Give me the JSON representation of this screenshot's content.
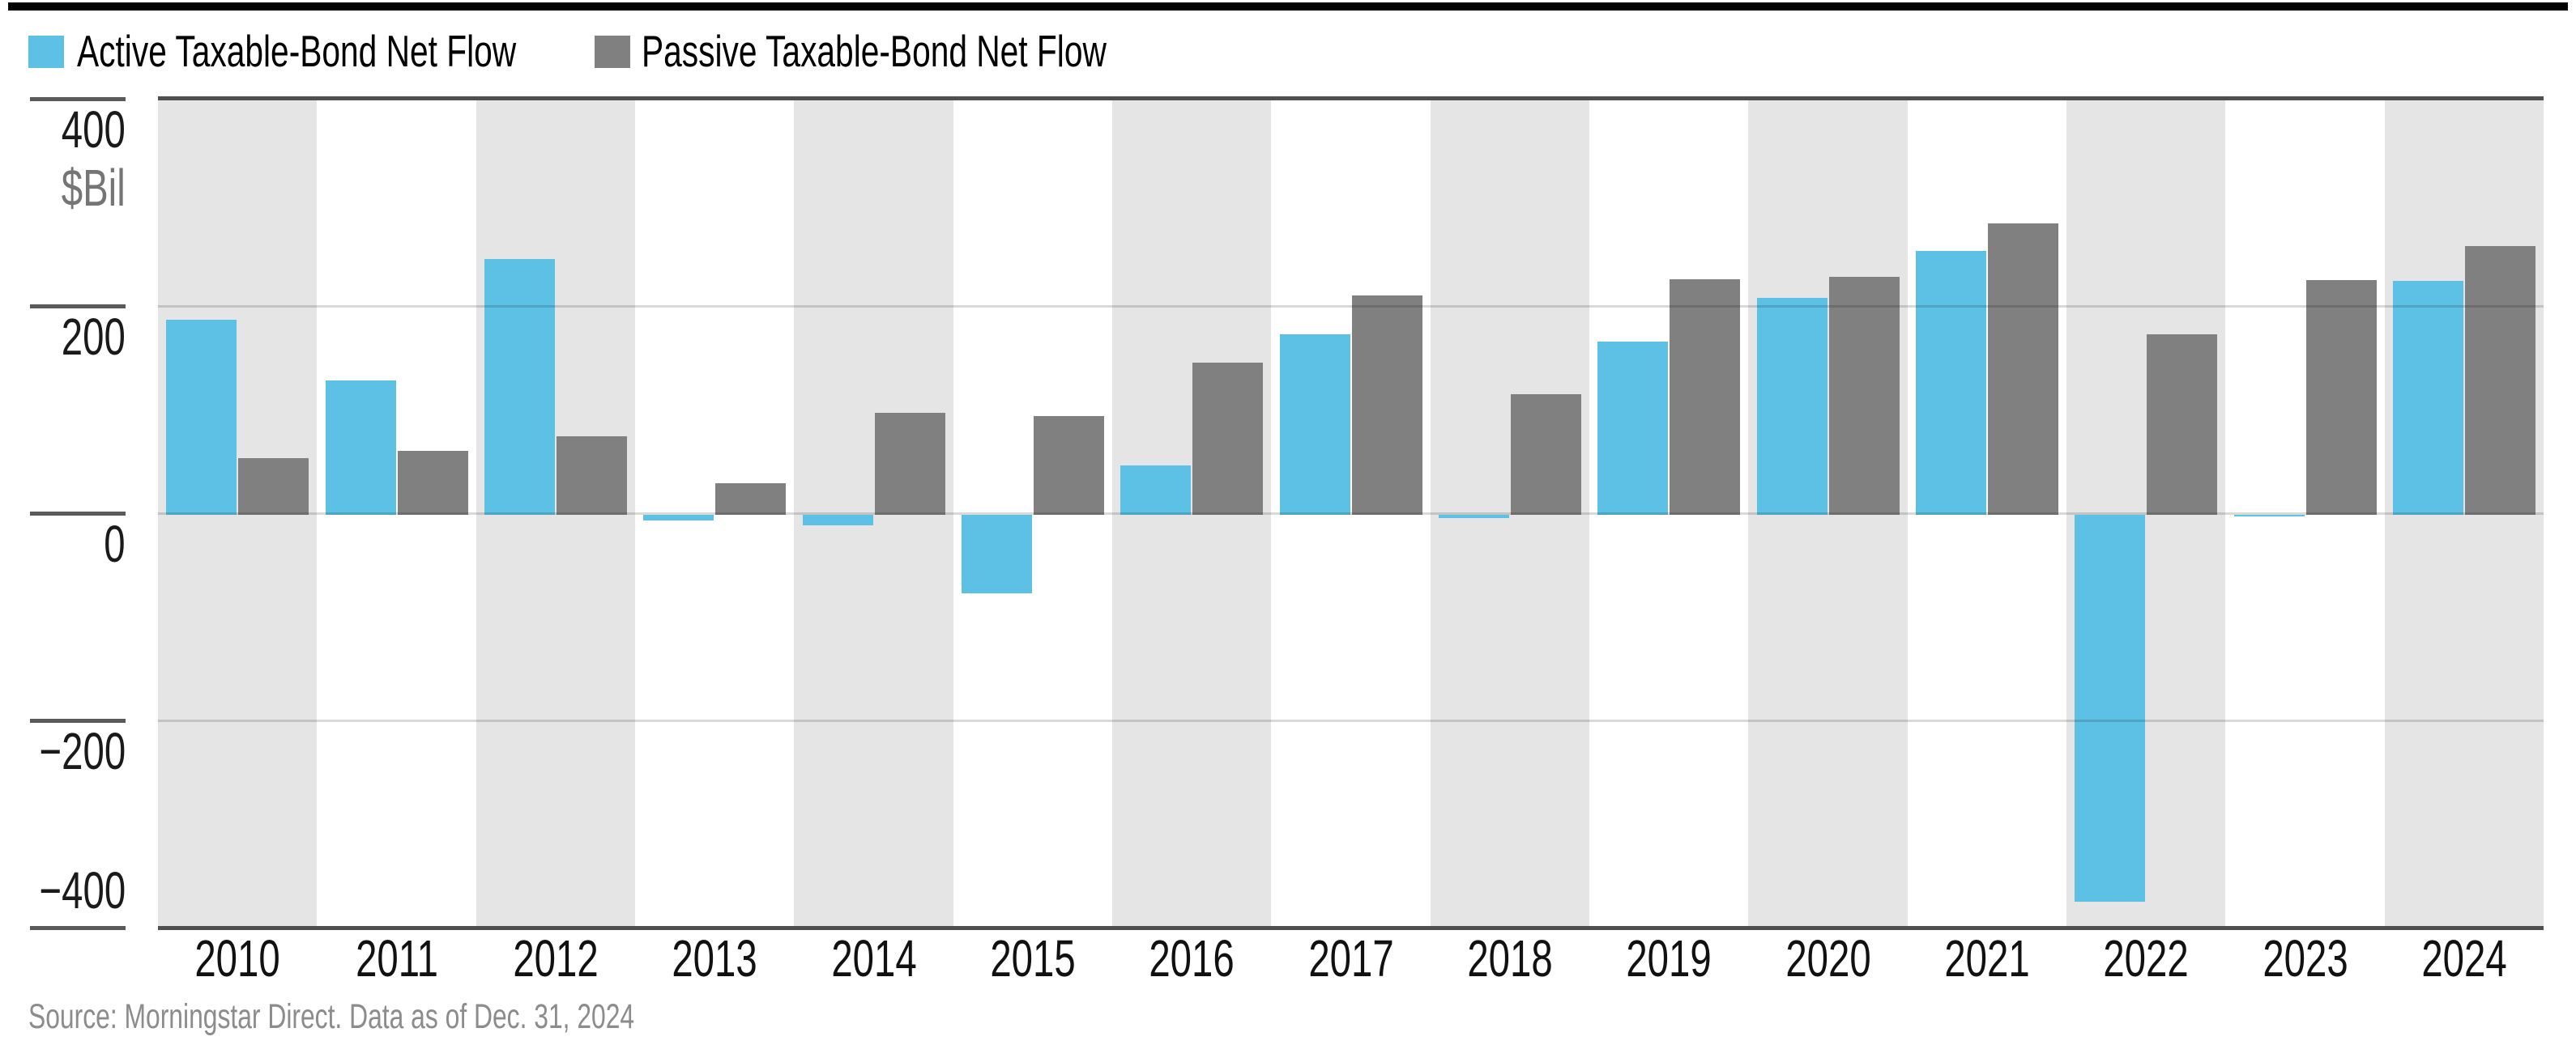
{
  "legend": {
    "items": [
      {
        "label": "Active Taxable-Bond Net Flow",
        "color": "#5CC1E5"
      },
      {
        "label": "Passive Taxable-Bond Net Flow",
        "color": "#808080"
      }
    ]
  },
  "source_note": "Source: Morningstar Direct. Data as of Dec. 31, 2024",
  "chart_data": {
    "type": "bar",
    "categories": [
      "2010",
      "2011",
      "2012",
      "2013",
      "2014",
      "2015",
      "2016",
      "2017",
      "2018",
      "2019",
      "2020",
      "2021",
      "2022",
      "2023",
      "2024"
    ],
    "series": [
      {
        "name": "Active Taxable-Bond Net Flow",
        "color": "#5CC1E5",
        "values": [
          187,
          128,
          245,
          -7,
          -12,
          -77,
          46,
          173,
          -5,
          166,
          208,
          253,
          -375,
          -3,
          224
        ]
      },
      {
        "name": "Passive Taxable-Bond Net Flow",
        "color": "#808080",
        "values": [
          53,
          60,
          74,
          29,
          97,
          94,
          145,
          210,
          115,
          226,
          228,
          280,
          173,
          225,
          258
        ]
      }
    ],
    "unit_label": "$Bil",
    "yticks": [
      400,
      200,
      0,
      -200,
      -400
    ],
    "ylim": [
      -400,
      400
    ],
    "grid": "horizontal",
    "legend_position": "top-left",
    "alt_column_shading": true
  },
  "colors": {
    "stripe": "#E5E5E5",
    "gridline": "rgba(0,0,0,0.15)",
    "axis": "#4F4F4F",
    "tick": "#5A5A5A",
    "top_rule": "#000000"
  }
}
